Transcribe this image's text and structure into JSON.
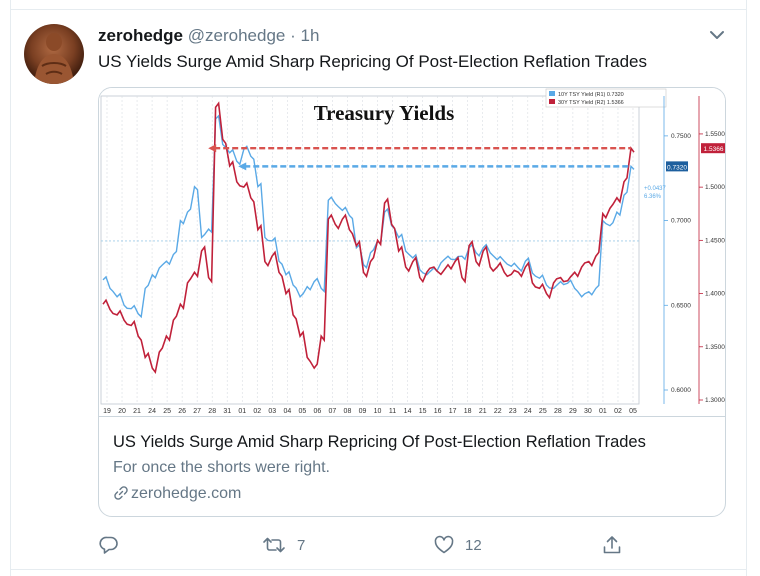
{
  "tweet": {
    "author_name": "zerohedge",
    "author_handle": "@zerohedge",
    "separator": "·",
    "time": "1h",
    "text": "US Yields Surge Amid Sharp Repricing Of Post-Election Reflation Trades"
  },
  "card": {
    "title": "US Yields Surge Amid Sharp Repricing Of Post-Election Reflation Trades",
    "description": "For once the shorts were right.",
    "domain": "zerohedge.com"
  },
  "actions": {
    "reply_count": "",
    "retweet_count": "7",
    "like_count": "12"
  },
  "icons": [
    "avatar",
    "chevron-down-icon",
    "link-icon",
    "reply-icon",
    "retweet-icon",
    "like-icon",
    "share-icon"
  ],
  "colors": {
    "text": "#14171a",
    "muted": "#657786",
    "border": "#ccd6dd",
    "series_10y": "#5aa9e6",
    "series_30y": "#c0213a"
  },
  "chart_data": {
    "type": "line",
    "title": "Treasury Yields",
    "legend": [
      "10Y TSY Yield (R1) 0.7320",
      "30Y TSY Yield (R2) 1.5366"
    ],
    "legend_position": "top-right",
    "x_tick_labels": [
      "19",
      "20",
      "21",
      "24",
      "25",
      "26",
      "27",
      "28",
      "31",
      "01",
      "02",
      "03",
      "04",
      "05",
      "06",
      "07",
      "08",
      "09",
      "10",
      "11",
      "14",
      "15",
      "16",
      "17",
      "18",
      "21",
      "22",
      "23",
      "24",
      "25",
      "28",
      "29",
      "30",
      "01",
      "02",
      "05"
    ],
    "y_right_outer_ticks": [
      "1.5500",
      "1.5000",
      "1.4500",
      "1.4000",
      "1.3500",
      "1.3000"
    ],
    "y_right_inner_ticks": [
      "0.7500",
      "0.7000",
      "0.6500",
      "0.6000"
    ],
    "annotations": {
      "last_30y": "1.5366",
      "last_10y": "0.7320",
      "change_abs": "+0.0437",
      "change_pct": "6.36%"
    },
    "series": [
      {
        "name": "10Y TSY Yield",
        "color": "#5aa9e6",
        "y_axis": "R1",
        "values": [
          0.665,
          0.66,
          0.655,
          0.65,
          0.648,
          0.645,
          0.66,
          0.668,
          0.672,
          0.676,
          0.68,
          0.7,
          0.705,
          0.72,
          0.69,
          0.695,
          0.76,
          0.745,
          0.74,
          0.735,
          0.742,
          0.738,
          0.72,
          0.69,
          0.688,
          0.676,
          0.668,
          0.662,
          0.655,
          0.661,
          0.664,
          0.66,
          0.712,
          0.71,
          0.706,
          0.703,
          0.684,
          0.674,
          0.681,
          0.688,
          0.705,
          0.697,
          0.69,
          0.682,
          0.678,
          0.671,
          0.668,
          0.672,
          0.675,
          0.679,
          0.677,
          0.679,
          0.684,
          0.681,
          0.684,
          0.681,
          0.677,
          0.676,
          0.673,
          0.672,
          0.676,
          0.669,
          0.666,
          0.662,
          0.66,
          0.664,
          0.663,
          0.66,
          0.655,
          0.658,
          0.66,
          0.7,
          0.697,
          0.705,
          0.715,
          0.732
        ]
      },
      {
        "name": "30Y TSY Yield",
        "color": "#c0213a",
        "y_axis": "R2",
        "values": [
          1.39,
          1.385,
          1.38,
          1.375,
          1.37,
          1.36,
          1.34,
          1.33,
          1.345,
          1.36,
          1.375,
          1.39,
          1.41,
          1.42,
          1.44,
          1.415,
          1.575,
          1.545,
          1.52,
          1.505,
          1.5,
          1.49,
          1.46,
          1.43,
          1.435,
          1.42,
          1.4,
          1.38,
          1.36,
          1.34,
          1.33,
          1.36,
          1.47,
          1.465,
          1.47,
          1.46,
          1.445,
          1.42,
          1.43,
          1.45,
          1.485,
          1.465,
          1.44,
          1.425,
          1.43,
          1.415,
          1.42,
          1.425,
          1.418,
          1.427,
          1.43,
          1.415,
          1.445,
          1.43,
          1.44,
          1.425,
          1.425,
          1.42,
          1.418,
          1.42,
          1.425,
          1.41,
          1.405,
          1.4,
          1.41,
          1.415,
          1.412,
          1.42,
          1.425,
          1.43,
          1.435,
          1.475,
          1.48,
          1.49,
          1.505,
          1.5366
        ]
      }
    ]
  }
}
